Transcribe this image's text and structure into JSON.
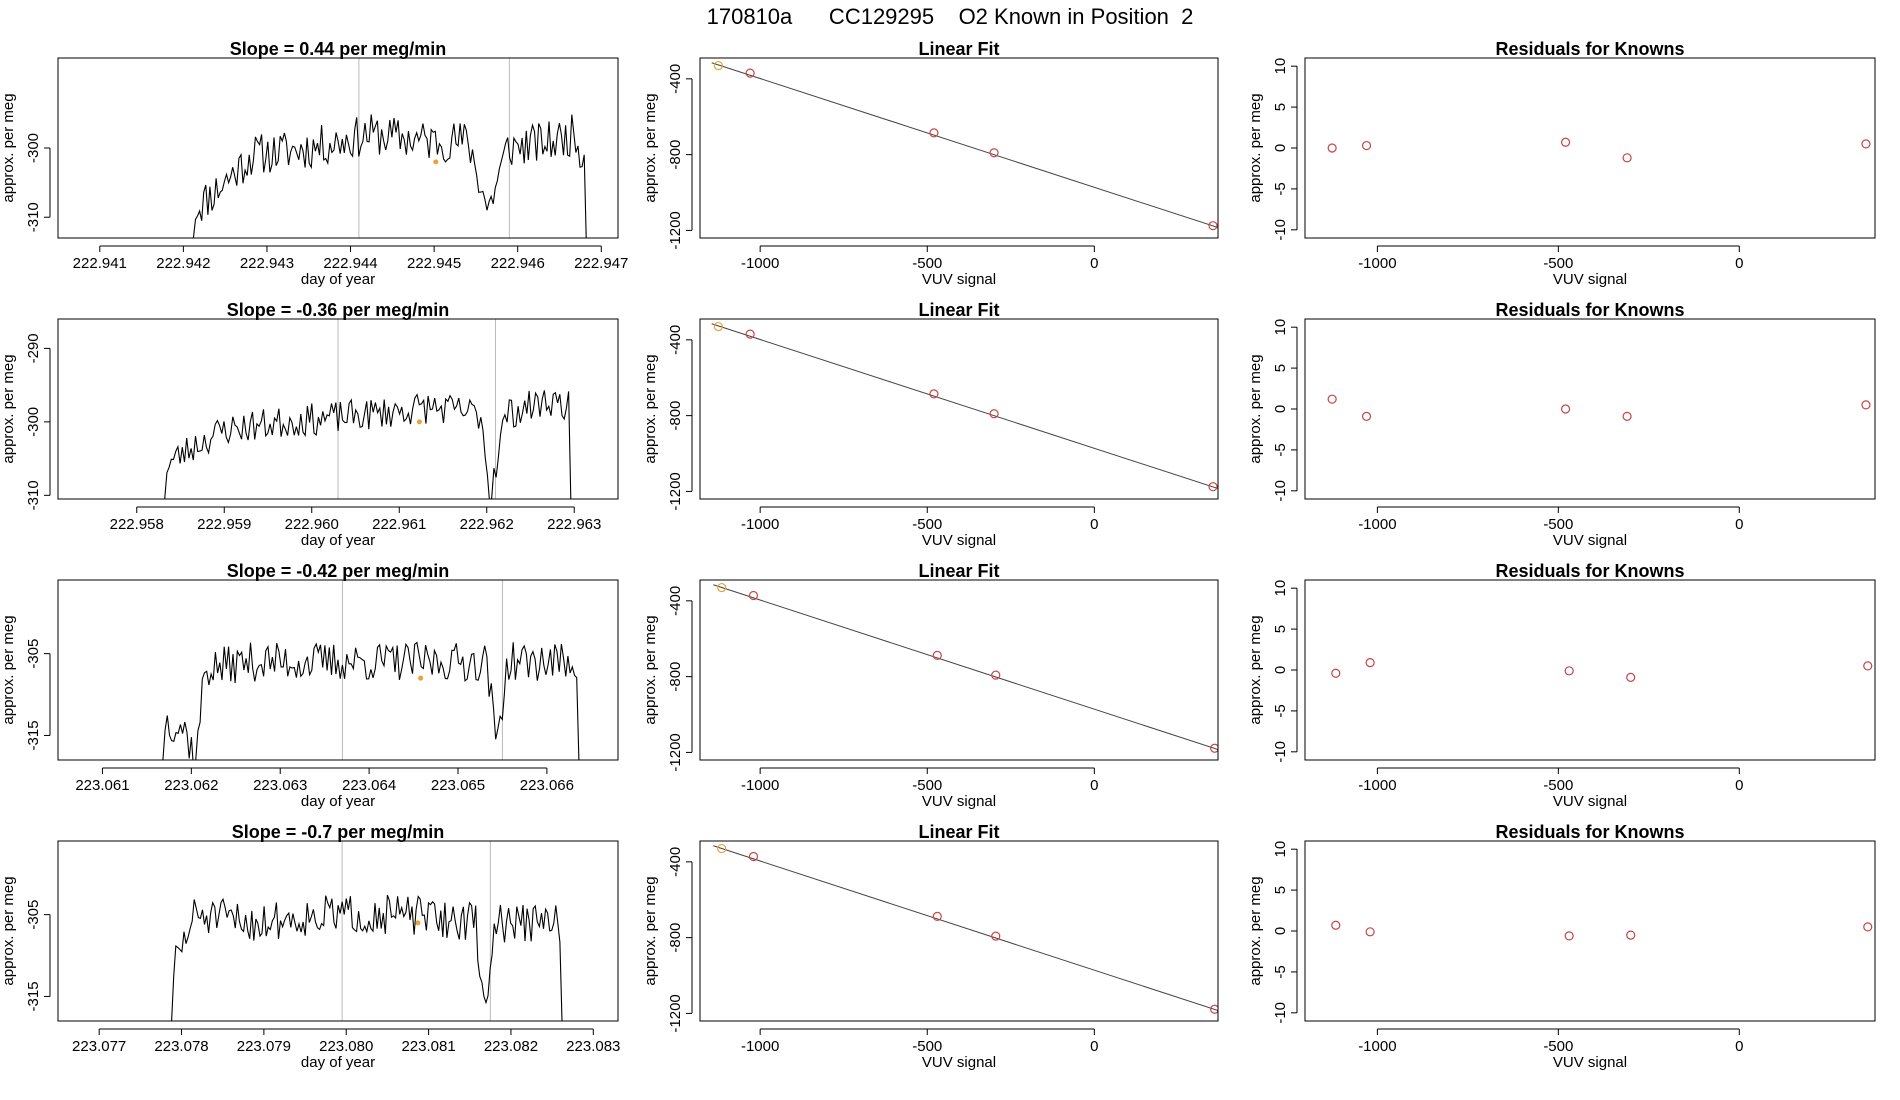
{
  "figure": {
    "title": "170810a      CC129295    O2 Known in Position  2",
    "title_id": "170810a",
    "cylinder": "CC129295",
    "description": "O2 Known in Position  2"
  },
  "chart_data": [
    {
      "type": "line",
      "row": 1,
      "panel": "time-series",
      "title": "Slope =  0.44  per meg/min",
      "xlabel": "day of year",
      "ylabel": "approx. per meg",
      "xlim": [
        222.9405,
        222.9472
      ],
      "ylim": [
        -313,
        -287
      ],
      "xticks": [
        "222.941",
        "222.942",
        "222.943",
        "222.944",
        "222.945",
        "222.946",
        "222.947"
      ],
      "xtick_values": [
        222.941,
        222.942,
        222.943,
        222.944,
        222.945,
        222.946,
        222.947
      ],
      "yticks": [
        "-310",
        "-300"
      ],
      "ytick_values": [
        -310,
        -300
      ],
      "vlines": [
        222.9441,
        222.9459
      ],
      "x_start": 222.94212,
      "x_end": 222.94682,
      "y_first": -313,
      "y_last": -313,
      "pattern": [
        [
          0,
          -309
        ],
        [
          0.06,
          -306
        ],
        [
          0.15,
          -301
        ],
        [
          0.3,
          -300
        ],
        [
          0.45,
          -298
        ],
        [
          0.6,
          -299
        ],
        [
          0.7,
          -299
        ],
        [
          0.75,
          -309
        ],
        [
          0.8,
          -300
        ],
        [
          0.92,
          -299
        ],
        [
          0.97,
          -298
        ],
        [
          1,
          -302
        ]
      ],
      "noise": 3.0,
      "seed": 11,
      "points": 190,
      "marker": {
        "x": 222.94502,
        "y": -302
      }
    },
    {
      "type": "scatter",
      "row": 1,
      "panel": "linear-fit",
      "title": "Linear Fit",
      "xlabel": "VUV signal",
      "ylabel": "approx. per meg",
      "xlim": [
        -1180,
        370
      ],
      "ylim": [
        -1240,
        -290
      ],
      "xticks": [
        "-1000",
        "-500",
        "0"
      ],
      "xtick_values": [
        -1000,
        -500,
        0
      ],
      "yticks": [
        "-400",
        "-800",
        "-1200"
      ],
      "ytick_values": [
        -400,
        -800,
        -1200
      ],
      "x": [
        -1125,
        -1030,
        -480,
        -300,
        355
      ],
      "y": [
        -330,
        -370,
        -685,
        -790,
        -1175
      ],
      "point_colors": [
        "#e8a33a",
        "#c44",
        "#c44",
        "#c44",
        "#c44"
      ],
      "fit_line": {
        "x": [
          -1145,
          370
        ],
        "y": [
          -315,
          -1185
        ]
      }
    },
    {
      "type": "scatter",
      "row": 1,
      "panel": "residuals",
      "title": "Residuals for Knowns",
      "xlabel": "VUV signal",
      "ylabel": "approx. per meg",
      "xlim": [
        -1200,
        375
      ],
      "ylim": [
        -11,
        11
      ],
      "xticks": [
        "-1000",
        "-500",
        "0"
      ],
      "xtick_values": [
        -1000,
        -500,
        0
      ],
      "yticks": [
        "10",
        "5",
        "0",
        "-5",
        "-10"
      ],
      "ytick_values": [
        10,
        5,
        0,
        -5,
        -10
      ],
      "x": [
        -1125,
        -1030,
        -480,
        -310,
        350
      ],
      "y": [
        0.0,
        0.3,
        0.7,
        -1.2,
        0.5
      ]
    },
    {
      "type": "line",
      "row": 2,
      "panel": "time-series",
      "title": "Slope =  -0.36  per meg/min",
      "xlabel": "day of year",
      "ylabel": "approx. per meg",
      "xlim": [
        222.9571,
        222.9635
      ],
      "ylim": [
        -310.5,
        -286
      ],
      "xticks": [
        "222.958",
        "222.959",
        "222.960",
        "222.961",
        "222.962",
        "222.963"
      ],
      "xtick_values": [
        222.958,
        222.959,
        222.96,
        222.961,
        222.962,
        222.963
      ],
      "yticks": [
        "-310",
        "-300",
        "-290"
      ],
      "ytick_values": [
        -310,
        -300,
        -290
      ],
      "vlines": [
        222.9603,
        222.9621
      ],
      "x_start": 222.95832,
      "x_end": 222.96296,
      "y_first": -310.5,
      "y_last": -310.5,
      "pattern": [
        [
          0,
          -306
        ],
        [
          0.08,
          -303
        ],
        [
          0.15,
          -301
        ],
        [
          0.3,
          -300
        ],
        [
          0.5,
          -299
        ],
        [
          0.65,
          -298
        ],
        [
          0.78,
          -299
        ],
        [
          0.8,
          -310
        ],
        [
          0.84,
          -299
        ],
        [
          0.95,
          -297
        ],
        [
          1,
          -298
        ]
      ],
      "noise": 2.2,
      "seed": 23,
      "points": 185,
      "marker": {
        "x": 222.96123,
        "y": -300
      }
    },
    {
      "type": "scatter",
      "row": 2,
      "panel": "linear-fit",
      "title": "Linear Fit",
      "xlabel": "VUV signal",
      "ylabel": "approx. per meg",
      "xlim": [
        -1180,
        370
      ],
      "ylim": [
        -1240,
        -290
      ],
      "xticks": [
        "-1000",
        "-500",
        "0"
      ],
      "xtick_values": [
        -1000,
        -500,
        0
      ],
      "yticks": [
        "-400",
        "-800",
        "-1200"
      ],
      "ytick_values": [
        -400,
        -800,
        -1200
      ],
      "x": [
        -1125,
        -1030,
        -480,
        -300,
        355
      ],
      "y": [
        -330,
        -370,
        -685,
        -790,
        -1175
      ],
      "point_colors": [
        "#e8a33a",
        "#c44",
        "#c44",
        "#c44",
        "#c44"
      ],
      "fit_line": {
        "x": [
          -1145,
          370
        ],
        "y": [
          -315,
          -1185
        ]
      }
    },
    {
      "type": "scatter",
      "row": 2,
      "panel": "residuals",
      "title": "Residuals for Knowns",
      "xlabel": "VUV signal",
      "ylabel": "approx. per meg",
      "xlim": [
        -1200,
        375
      ],
      "ylim": [
        -11,
        11
      ],
      "xticks": [
        "-1000",
        "-500",
        "0"
      ],
      "xtick_values": [
        -1000,
        -500,
        0
      ],
      "yticks": [
        "10",
        "5",
        "0",
        "-5",
        "-10"
      ],
      "ytick_values": [
        10,
        5,
        0,
        -5,
        -10
      ],
      "x": [
        -1125,
        -1030,
        -480,
        -310,
        350
      ],
      "y": [
        1.2,
        -0.9,
        0.0,
        -0.9,
        0.5
      ]
    },
    {
      "type": "line",
      "row": 3,
      "panel": "time-series",
      "title": "Slope =  -0.42  per meg/min",
      "xlabel": "day of year",
      "ylabel": "approx. per meg",
      "xlim": [
        223.0605,
        223.0668
      ],
      "ylim": [
        -318,
        -296
      ],
      "xticks": [
        "223.061",
        "223.062",
        "223.063",
        "223.064",
        "223.065",
        "223.066"
      ],
      "xtick_values": [
        223.061,
        223.062,
        223.063,
        223.064,
        223.065,
        223.066
      ],
      "yticks": [
        "-315",
        "-305"
      ],
      "ytick_values": [
        -315,
        -305
      ],
      "vlines": [
        223.0637,
        223.0655
      ],
      "x_start": 223.06168,
      "x_end": 223.06636,
      "y_first": -318,
      "y_last": -318,
      "pattern": [
        [
          0,
          -313
        ],
        [
          0.05,
          -314
        ],
        [
          0.08,
          -318
        ],
        [
          0.1,
          -307
        ],
        [
          0.2,
          -306
        ],
        [
          0.4,
          -306
        ],
        [
          0.6,
          -306
        ],
        [
          0.78,
          -306
        ],
        [
          0.8,
          -316
        ],
        [
          0.83,
          -306
        ],
        [
          1,
          -306
        ]
      ],
      "noise": 2.4,
      "seed": 37,
      "points": 190,
      "marker": {
        "x": 223.06458,
        "y": -308
      }
    },
    {
      "type": "scatter",
      "row": 3,
      "panel": "linear-fit",
      "title": "Linear Fit",
      "xlabel": "VUV signal",
      "ylabel": "approx. per meg",
      "xlim": [
        -1180,
        370
      ],
      "ylim": [
        -1240,
        -290
      ],
      "xticks": [
        "-1000",
        "-500",
        "0"
      ],
      "xtick_values": [
        -1000,
        -500,
        0
      ],
      "yticks": [
        "-400",
        "-800",
        "-1200"
      ],
      "ytick_values": [
        -400,
        -800,
        -1200
      ],
      "x": [
        -1115,
        -1020,
        -470,
        -295,
        360
      ],
      "y": [
        -330,
        -372,
        -688,
        -792,
        -1178
      ],
      "point_colors": [
        "#e8a33a",
        "#c44",
        "#c44",
        "#c44",
        "#c44"
      ],
      "fit_line": {
        "x": [
          -1140,
          370
        ],
        "y": [
          -315,
          -1185
        ]
      }
    },
    {
      "type": "scatter",
      "row": 3,
      "panel": "residuals",
      "title": "Residuals for Knowns",
      "xlabel": "VUV signal",
      "ylabel": "approx. per meg",
      "xlim": [
        -1200,
        375
      ],
      "ylim": [
        -11,
        11
      ],
      "xticks": [
        "-1000",
        "-500",
        "0"
      ],
      "xtick_values": [
        -1000,
        -500,
        0
      ],
      "yticks": [
        "10",
        "5",
        "0",
        "-5",
        "-10"
      ],
      "ytick_values": [
        10,
        5,
        0,
        -5,
        -10
      ],
      "x": [
        -1115,
        -1020,
        -470,
        -300,
        355
      ],
      "y": [
        -0.4,
        0.9,
        -0.1,
        -0.9,
        0.5
      ]
    },
    {
      "type": "line",
      "row": 4,
      "panel": "time-series",
      "title": "Slope =  -0.7  per meg/min",
      "xlabel": "day of year",
      "ylabel": "approx. per meg",
      "xlim": [
        223.0765,
        223.0833
      ],
      "ylim": [
        -318,
        -296
      ],
      "xticks": [
        "223.077",
        "223.078",
        "223.079",
        "223.080",
        "223.081",
        "223.082",
        "223.083"
      ],
      "xtick_values": [
        223.077,
        223.078,
        223.079,
        223.08,
        223.081,
        223.082,
        223.083
      ],
      "yticks": [
        "-315",
        "-305"
      ],
      "ytick_values": [
        -315,
        -305
      ],
      "vlines": [
        223.07995,
        223.08175
      ],
      "x_start": 223.07788,
      "x_end": 223.08262,
      "y_first": -318,
      "y_last": -318,
      "pattern": [
        [
          0,
          -312
        ],
        [
          0.06,
          -305
        ],
        [
          0.2,
          -306
        ],
        [
          0.4,
          -305
        ],
        [
          0.6,
          -305
        ],
        [
          0.78,
          -306
        ],
        [
          0.8,
          -317
        ],
        [
          0.83,
          -306
        ],
        [
          1,
          -306
        ]
      ],
      "noise": 2.4,
      "seed": 51,
      "points": 190,
      "marker": {
        "x": 223.08087,
        "y": -306
      }
    },
    {
      "type": "scatter",
      "row": 4,
      "panel": "linear-fit",
      "title": "Linear Fit",
      "xlabel": "VUV signal",
      "ylabel": "approx. per meg",
      "xlim": [
        -1180,
        370
      ],
      "ylim": [
        -1240,
        -290
      ],
      "xticks": [
        "-1000",
        "-500",
        "0"
      ],
      "xtick_values": [
        -1000,
        -500,
        0
      ],
      "yticks": [
        "-400",
        "-800",
        "-1200"
      ],
      "ytick_values": [
        -400,
        -800,
        -1200
      ],
      "x": [
        -1115,
        -1020,
        -470,
        -295,
        360
      ],
      "y": [
        -330,
        -372,
        -688,
        -792,
        -1178
      ],
      "point_colors": [
        "#e8a33a",
        "#c44",
        "#c44",
        "#c44",
        "#c44"
      ],
      "fit_line": {
        "x": [
          -1140,
          370
        ],
        "y": [
          -315,
          -1185
        ]
      }
    },
    {
      "type": "scatter",
      "row": 4,
      "panel": "residuals",
      "title": "Residuals for Knowns",
      "xlabel": "VUV signal",
      "ylabel": "approx. per meg",
      "xlim": [
        -1200,
        375
      ],
      "ylim": [
        -11,
        11
      ],
      "xticks": [
        "-1000",
        "-500",
        "0"
      ],
      "xtick_values": [
        -1000,
        -500,
        0
      ],
      "yticks": [
        "10",
        "5",
        "0",
        "-5",
        "-10"
      ],
      "ytick_values": [
        10,
        5,
        0,
        -5,
        -10
      ],
      "x": [
        -1115,
        -1020,
        -470,
        -300,
        355
      ],
      "y": [
        0.7,
        -0.1,
        -0.6,
        -0.5,
        0.5
      ]
    }
  ],
  "colors": {
    "line": "#000000",
    "fit_line": "#444444",
    "vline": "#bbbbbb",
    "point": "#c44444",
    "highlight": "#e8a33a",
    "axis": "#000000"
  }
}
